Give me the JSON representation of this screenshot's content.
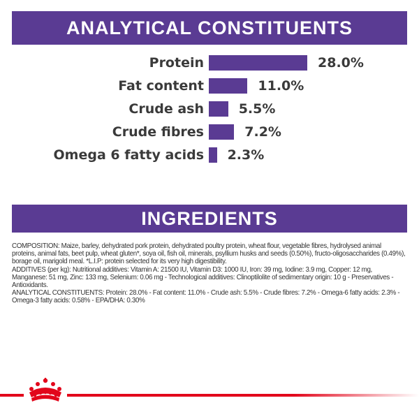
{
  "analytical": {
    "title": "ANALYTICAL CONSTITUENTS",
    "items": [
      {
        "label": "Protein",
        "value": 28.0,
        "display": "28.0%"
      },
      {
        "label": "Fat content",
        "value": 11.0,
        "display": "11.0%"
      },
      {
        "label": "Crude ash",
        "value": 5.5,
        "display": "5.5%"
      },
      {
        "label": "Crude fibres",
        "value": 7.2,
        "display": "7.2%"
      },
      {
        "label": "Omega 6 fatty acids",
        "value": 2.3,
        "display": "2.3%"
      }
    ]
  },
  "ingredients": {
    "title": "INGREDIENTS",
    "composition": "COMPOSITION: Maize, barley, dehydrated pork protein, dehydrated poultry protein, wheat flour, vegetable fibres, hydrolysed animal proteins, animal fats, beet pulp, wheat gluten*, soya oil, fish oil, minerals, psyllium husks and seeds (0.50%), fructo-oligosaccharides (0.49%), borage oil, marigold meal. *L.I.P: protein selected for its very high digestibility.",
    "additives": "ADDITIVES (per kg): Nutritional additives: Vitamin A: 21500 IU, Vitamin D3: 1000 IU, Iron: 39 mg, Iodine: 3.9 mg, Copper: 12 mg, Manganese: 51 mg, Zinc: 133 mg, Selenium: 0.06 mg - Technological additives: Clinoptilolite of sedimentary origin: 10 g - Preservatives - Antioxidants.",
    "constituents": "ANALYTICAL CONSTITUENTS: Protein: 28.0% - Fat content: 11.0% - Crude ash: 5.5% - Crude fibres: 7.2% - Omega-6 fatty acids: 2.3% - Omega-3 fatty acids: 0.58% - EPA/DHA: 0.30%"
  },
  "colors": {
    "brand_purple": "#5a3b93",
    "brand_red": "#e2061b"
  },
  "footer": {
    "icon": "crown-logo-icon"
  }
}
